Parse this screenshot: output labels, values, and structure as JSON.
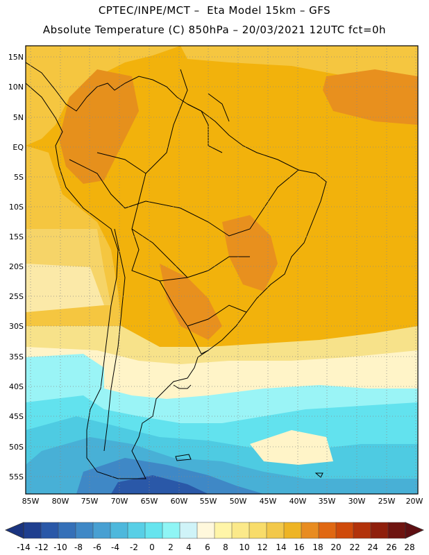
{
  "header": {
    "line1": "CPTEC/INPE/MCT –  Eta Model 15km – GFS",
    "line2": "Absolute Temperature (C) 850hPa – 20/03/2021 12UTC fct=0h"
  },
  "map": {
    "lat_labels": [
      "15N",
      "10N",
      "5N",
      "EQ",
      "5S",
      "10S",
      "15S",
      "20S",
      "25S",
      "30S",
      "35S",
      "40S",
      "45S",
      "50S",
      "55S"
    ],
    "lon_labels": [
      "85W",
      "80W",
      "75W",
      "70W",
      "65W",
      "60W",
      "55W",
      "50W",
      "45W",
      "40W",
      "35W",
      "30W",
      "25W",
      "20W"
    ]
  },
  "colorbar": {
    "labels": [
      "-14",
      "-12",
      "-10",
      "-8",
      "-6",
      "-4",
      "-2",
      "0",
      "2",
      "4",
      "6",
      "8",
      "10",
      "12",
      "14",
      "16",
      "18",
      "20",
      "22",
      "24",
      "26",
      "28"
    ],
    "colors": [
      "#1f3f8f",
      "#2a58a8",
      "#3570b8",
      "#3f88c6",
      "#48a0d2",
      "#4eb8dc",
      "#58cfe6",
      "#66e4ee",
      "#8ff5f5",
      "#cff3f8",
      "#fff8dc",
      "#fff5a8",
      "#fbe98a",
      "#f8dc6a",
      "#f2c84a",
      "#eeb424",
      "#e88c20",
      "#e06812",
      "#cf4a0a",
      "#b2320a",
      "#8f1f0c",
      "#6e1410"
    ]
  }
}
